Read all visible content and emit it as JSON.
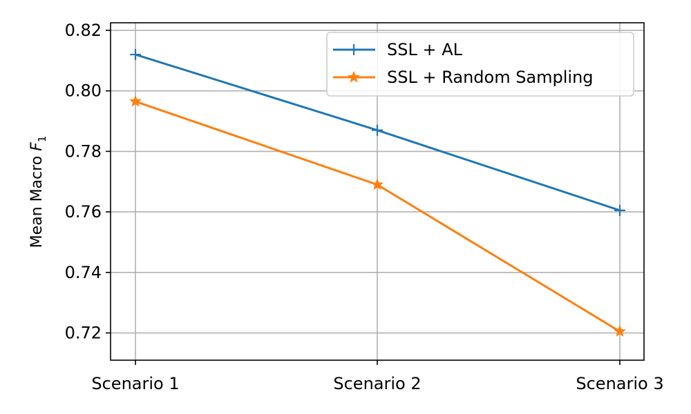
{
  "chart_data": {
    "type": "line",
    "categories": [
      "Scenario 1",
      "Scenario 2",
      "Scenario 3"
    ],
    "series": [
      {
        "name": "SSL + AL",
        "values": [
          0.812,
          0.787,
          0.7605
        ],
        "color": "#1f77b4",
        "marker": "plus"
      },
      {
        "name": "SSL + Random Sampling",
        "values": [
          0.7965,
          0.769,
          0.7205
        ],
        "color": "#ff7f0e",
        "marker": "star"
      }
    ],
    "yticks": [
      "0.72",
      "0.74",
      "0.76",
      "0.78",
      "0.80",
      "0.82"
    ],
    "ylim": [
      0.711,
      0.8225
    ],
    "ylabel_prefix": "Mean Macro ",
    "ylabel_var": "F",
    "ylabel_sub": "1",
    "xlabel": "",
    "grid": true,
    "legend_position": "top-right"
  }
}
